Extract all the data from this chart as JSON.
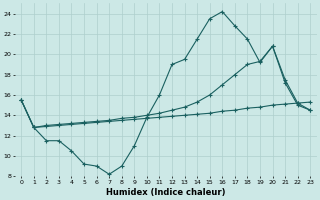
{
  "xlabel": "Humidex (Indice chaleur)",
  "xlim": [
    -0.5,
    23.5
  ],
  "ylim": [
    8,
    25
  ],
  "yticks": [
    8,
    10,
    12,
    14,
    16,
    18,
    20,
    22,
    24
  ],
  "xticks": [
    0,
    1,
    2,
    3,
    4,
    5,
    6,
    7,
    8,
    9,
    10,
    11,
    12,
    13,
    14,
    15,
    16,
    17,
    18,
    19,
    20,
    21,
    22,
    23
  ],
  "background_color": "#cce8e6",
  "grid_color": "#aecfcd",
  "line_color": "#1a6060",
  "line1_x": [
    0,
    1,
    2,
    3,
    4,
    5,
    6,
    7,
    8,
    9,
    10,
    11,
    12,
    13,
    14,
    15,
    16,
    17,
    18,
    19,
    20,
    21,
    22,
    23
  ],
  "line1_y": [
    15.5,
    12.8,
    11.5,
    11.5,
    10.5,
    9.2,
    9.0,
    8.2,
    9.0,
    11.0,
    13.8,
    16.0,
    19.0,
    19.5,
    21.5,
    23.5,
    24.2,
    22.8,
    21.5,
    19.2,
    20.8,
    17.2,
    15.0,
    14.5
  ],
  "line2_x": [
    0,
    1,
    2,
    3,
    4,
    5,
    6,
    7,
    8,
    9,
    10,
    11,
    12,
    13,
    14,
    15,
    16,
    17,
    18,
    19,
    20,
    21,
    22,
    23
  ],
  "line2_y": [
    15.5,
    12.8,
    12.9,
    13.0,
    13.1,
    13.2,
    13.3,
    13.4,
    13.5,
    13.6,
    13.7,
    13.8,
    13.9,
    14.0,
    14.1,
    14.2,
    14.4,
    14.5,
    14.7,
    14.8,
    15.0,
    15.1,
    15.2,
    15.3
  ],
  "line3_x": [
    0,
    1,
    2,
    3,
    4,
    5,
    6,
    7,
    8,
    9,
    10,
    11,
    12,
    13,
    14,
    15,
    16,
    17,
    18,
    19,
    20,
    21,
    22,
    23
  ],
  "line3_y": [
    15.5,
    12.8,
    13.0,
    13.1,
    13.2,
    13.3,
    13.4,
    13.5,
    13.7,
    13.8,
    14.0,
    14.2,
    14.5,
    14.8,
    15.3,
    16.0,
    17.0,
    18.0,
    19.0,
    19.3,
    20.8,
    17.5,
    15.2,
    14.5
  ]
}
